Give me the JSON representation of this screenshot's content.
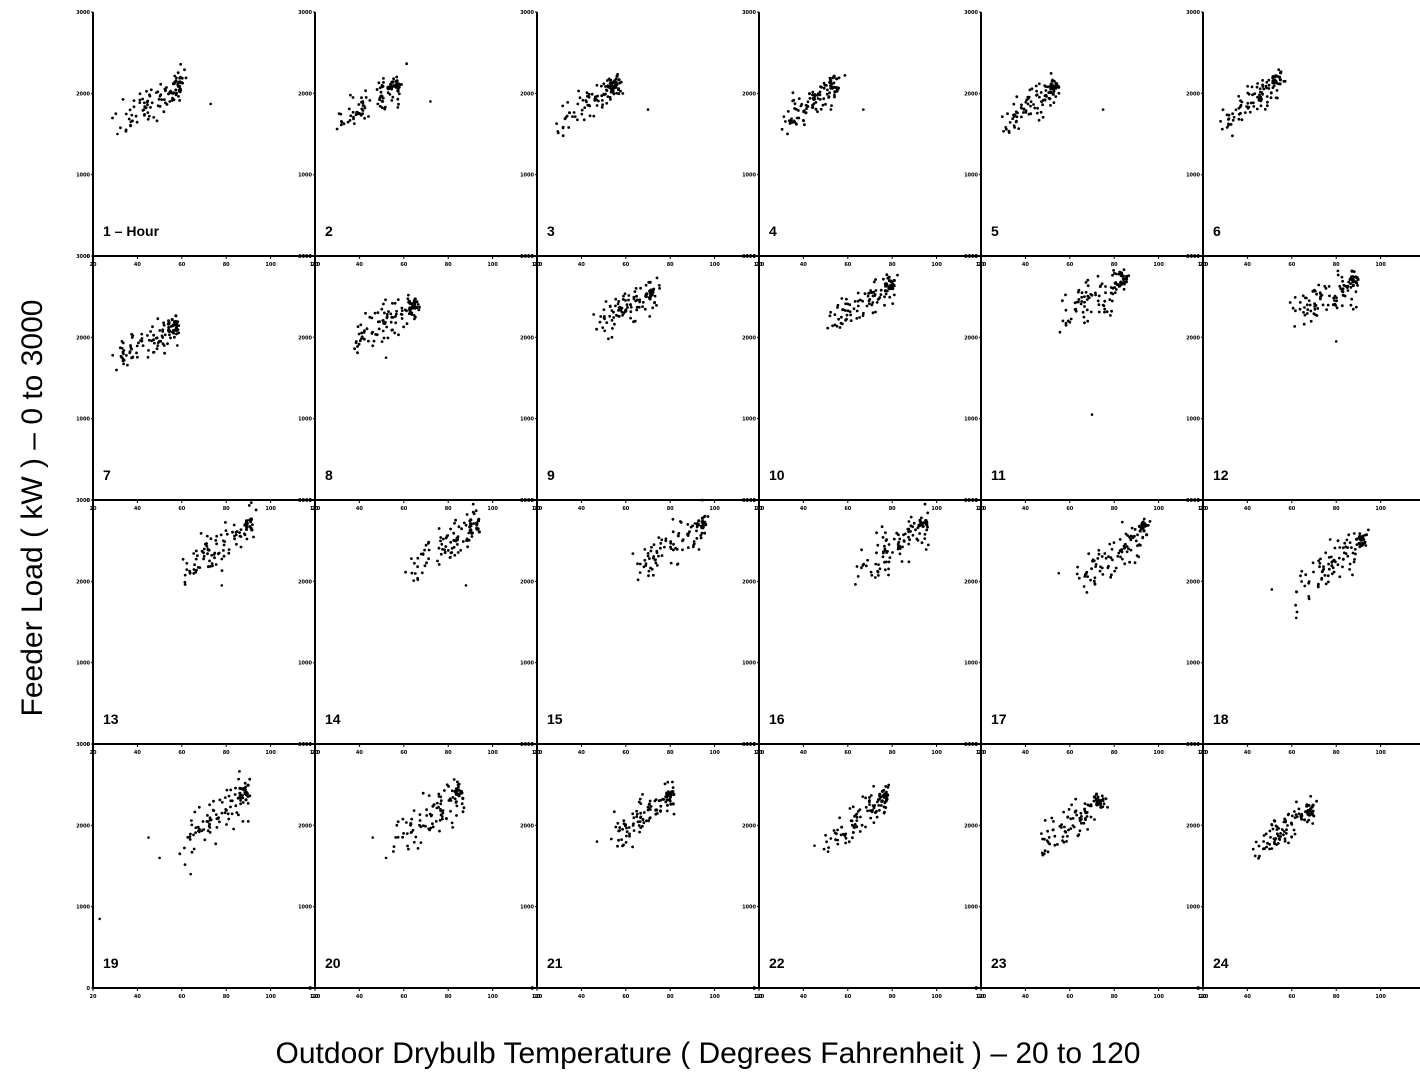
{
  "figure": {
    "ylabel": "Feeder Load ( kW )  –  0 to 3000",
    "xlabel": "Outdoor Drybulb Temperature ( Degrees Fahrenheit )  –  20 to 120"
  },
  "colors": {
    "ink": "#000000",
    "background": "#ffffff"
  },
  "chart_data": {
    "type": "scatter",
    "layout": "small-multiples grid, 4 rows x 6 columns",
    "xlim": [
      20,
      120
    ],
    "ylim": [
      0,
      3000
    ],
    "x_ticks": [
      "20",
      "40",
      "60",
      "80",
      "100",
      "120"
    ],
    "y_ticks": [
      "0",
      "1000",
      "2000",
      "3000"
    ],
    "grid": false,
    "legend": "none",
    "panels": [
      {
        "label": "1 – Hour",
        "hour": 1,
        "temp_range": [
          32,
          60
        ],
        "load_at_low": 1650,
        "load_at_high": 2100,
        "spread": 110,
        "n": 90,
        "outliers": [
          [
            31,
            1500
          ],
          [
            73,
            1870
          ]
        ]
      },
      {
        "label": "2",
        "hour": 2,
        "temp_range": [
          31,
          58
        ],
        "load_at_low": 1650,
        "load_at_high": 2100,
        "spread": 100,
        "n": 90,
        "outliers": [
          [
            72,
            1900
          ]
        ]
      },
      {
        "label": "3",
        "hour": 3,
        "temp_range": [
          30,
          57
        ],
        "load_at_low": 1630,
        "load_at_high": 2100,
        "spread": 100,
        "n": 90,
        "outliers": [
          [
            70,
            1800
          ]
        ]
      },
      {
        "label": "4",
        "hour": 4,
        "temp_range": [
          30,
          56
        ],
        "load_at_low": 1620,
        "load_at_high": 2100,
        "spread": 100,
        "n": 90,
        "outliers": [
          [
            67,
            1800
          ]
        ]
      },
      {
        "label": "5",
        "hour": 5,
        "temp_range": [
          30,
          55
        ],
        "load_at_low": 1620,
        "load_at_high": 2080,
        "spread": 100,
        "n": 90,
        "outliers": [
          [
            75,
            1800
          ]
        ]
      },
      {
        "label": "6",
        "hour": 6,
        "temp_range": [
          29,
          55
        ],
        "load_at_low": 1640,
        "load_at_high": 2150,
        "spread": 100,
        "n": 90,
        "outliers": []
      },
      {
        "label": "7",
        "hour": 7,
        "temp_range": [
          31,
          58
        ],
        "load_at_low": 1750,
        "load_at_high": 2150,
        "spread": 100,
        "n": 90,
        "outliers": [
          [
            58,
            1900
          ]
        ]
      },
      {
        "label": "8",
        "hour": 8,
        "temp_range": [
          38,
          66
        ],
        "load_at_low": 2000,
        "load_at_high": 2400,
        "spread": 110,
        "n": 90,
        "outliers": [
          [
            52,
            1750
          ]
        ]
      },
      {
        "label": "9",
        "hour": 9,
        "temp_range": [
          46,
          73
        ],
        "load_at_low": 2150,
        "load_at_high": 2550,
        "spread": 110,
        "n": 90,
        "outliers": []
      },
      {
        "label": "10",
        "hour": 10,
        "temp_range": [
          52,
          81
        ],
        "load_at_low": 2200,
        "load_at_high": 2650,
        "spread": 110,
        "n": 90,
        "outliers": []
      },
      {
        "label": "11",
        "hour": 11,
        "temp_range": [
          56,
          86
        ],
        "load_at_low": 2250,
        "load_at_high": 2700,
        "spread": 120,
        "n": 90,
        "outliers": [
          [
            70,
            1050
          ]
        ]
      },
      {
        "label": "12",
        "hour": 12,
        "temp_range": [
          58,
          90
        ],
        "load_at_low": 2250,
        "load_at_high": 2700,
        "spread": 120,
        "n": 90,
        "outliers": [
          [
            80,
            1950
          ]
        ]
      },
      {
        "label": "13",
        "hour": 13,
        "temp_range": [
          61,
          92
        ],
        "load_at_low": 2150,
        "load_at_high": 2700,
        "spread": 120,
        "n": 90,
        "outliers": [
          [
            78,
            1950
          ]
        ]
      },
      {
        "label": "14",
        "hour": 14,
        "temp_range": [
          63,
          94
        ],
        "load_at_low": 2150,
        "load_at_high": 2700,
        "spread": 120,
        "n": 90,
        "outliers": [
          [
            88,
            1950
          ]
        ]
      },
      {
        "label": "15",
        "hour": 15,
        "temp_range": [
          64,
          96
        ],
        "load_at_low": 2150,
        "load_at_high": 2700,
        "spread": 120,
        "n": 90,
        "outliers": []
      },
      {
        "label": "16",
        "hour": 16,
        "temp_range": [
          64,
          96
        ],
        "load_at_low": 2100,
        "load_at_high": 2700,
        "spread": 130,
        "n": 90,
        "outliers": []
      },
      {
        "label": "17",
        "hour": 17,
        "temp_range": [
          64,
          95
        ],
        "load_at_low": 2000,
        "load_at_high": 2650,
        "spread": 140,
        "n": 90,
        "outliers": [
          [
            55,
            2100
          ]
        ]
      },
      {
        "label": "18",
        "hour": 18,
        "temp_range": [
          62,
          93
        ],
        "load_at_low": 1950,
        "load_at_high": 2500,
        "spread": 140,
        "n": 90,
        "outliers": [
          [
            51,
            1900
          ],
          [
            62,
            1550
          ]
        ]
      },
      {
        "label": "19",
        "hour": 19,
        "temp_range": [
          60,
          90
        ],
        "load_at_low": 1850,
        "load_at_high": 2400,
        "spread": 150,
        "n": 90,
        "outliers": [
          [
            45,
            1850
          ],
          [
            50,
            1600
          ],
          [
            23,
            850
          ],
          [
            64,
            1400
          ]
        ]
      },
      {
        "label": "20",
        "hour": 20,
        "temp_range": [
          55,
          87
        ],
        "load_at_low": 1850,
        "load_at_high": 2400,
        "spread": 140,
        "n": 90,
        "outliers": [
          [
            52,
            1600
          ],
          [
            46,
            1850
          ]
        ]
      },
      {
        "label": "21",
        "hour": 21,
        "temp_range": [
          52,
          82
        ],
        "load_at_low": 1800,
        "load_at_high": 2350,
        "spread": 120,
        "n": 90,
        "outliers": [
          [
            47,
            1800
          ]
        ]
      },
      {
        "label": "22",
        "hour": 22,
        "temp_range": [
          49,
          78
        ],
        "load_at_low": 1780,
        "load_at_high": 2350,
        "spread": 110,
        "n": 90,
        "outliers": [
          [
            45,
            1750
          ]
        ]
      },
      {
        "label": "23",
        "hour": 23,
        "temp_range": [
          46,
          75
        ],
        "load_at_low": 1760,
        "load_at_high": 2300,
        "spread": 110,
        "n": 90,
        "outliers": []
      },
      {
        "label": "24",
        "hour": 24,
        "temp_range": [
          43,
          70
        ],
        "load_at_low": 1680,
        "load_at_high": 2200,
        "spread": 110,
        "n": 90,
        "outliers": []
      }
    ]
  }
}
